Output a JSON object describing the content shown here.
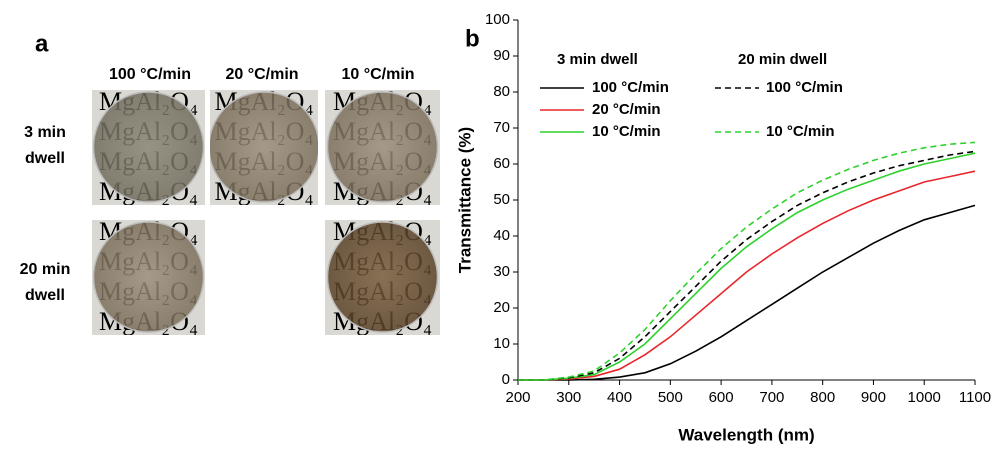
{
  "panel_a": {
    "label": "a",
    "columns": [
      "100 °C/min",
      "20 °C/min",
      "10 °C/min"
    ],
    "rows": [
      [
        "3 min",
        "dwell"
      ],
      [
        "20 min",
        "dwell"
      ]
    ],
    "photo_text": "MgAl₂O₄"
  },
  "chart_data": {
    "type": "line",
    "label": "b",
    "x_label": "Wavelength (nm)",
    "y_label": "Transmittance (%)",
    "x": [
      200,
      250,
      300,
      350,
      400,
      450,
      500,
      550,
      600,
      650,
      700,
      750,
      800,
      850,
      900,
      950,
      1000,
      1050,
      1100
    ],
    "xlim": [
      200,
      1100
    ],
    "xticks": [
      200,
      300,
      400,
      500,
      600,
      700,
      800,
      900,
      1000,
      1100
    ],
    "ylim": [
      0,
      100
    ],
    "yticks": [
      0,
      10,
      20,
      30,
      40,
      50,
      60,
      70,
      80,
      90,
      100
    ],
    "legend_groups": [
      "3 min dwell",
      "20 min dwell"
    ],
    "series": [
      {
        "name": "100 °C/min",
        "group": 0,
        "color": "#000000",
        "dash": false,
        "values": [
          0,
          0,
          0,
          0.2,
          0.8,
          2,
          4.5,
          8,
          12,
          16.5,
          21,
          25.5,
          30,
          34,
          38,
          41.5,
          44.5,
          46.5,
          48.5
        ]
      },
      {
        "name": "20 °C/min",
        "group": 0,
        "color": "#e8262b",
        "dash": false,
        "values": [
          0,
          0,
          0.3,
          1,
          3,
          7,
          12,
          18,
          24,
          30,
          35,
          39.5,
          43.5,
          47,
          50,
          52.5,
          55,
          56.5,
          58
        ]
      },
      {
        "name": "10 °C/min",
        "group": 0,
        "color": "#2fd12f",
        "dash": false,
        "values": [
          0,
          0,
          0.5,
          1.5,
          5,
          10,
          17,
          24,
          31,
          37,
          42,
          46.5,
          50,
          53,
          55.5,
          58,
          60,
          61.5,
          63
        ]
      },
      {
        "name": "100 °C/min",
        "group": 1,
        "color": "#000000",
        "dash": true,
        "values": [
          0,
          0,
          0.6,
          2,
          6,
          12,
          19,
          26,
          33,
          39,
          44,
          48.5,
          52,
          55,
          57.5,
          59.5,
          61,
          62.5,
          63.5
        ]
      },
      {
        "name": "10 °C/min",
        "group": 1,
        "color": "#2fd12f",
        "dash": true,
        "values": [
          0,
          0,
          0.8,
          2.5,
          7.5,
          14,
          22,
          29.5,
          36.5,
          42.5,
          47.5,
          52,
          55.5,
          58.5,
          61,
          63,
          64.5,
          65.5,
          66
        ]
      }
    ]
  }
}
